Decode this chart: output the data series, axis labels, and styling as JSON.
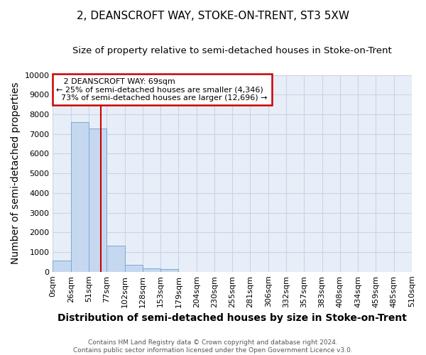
{
  "title": "2, DEANSCROFT WAY, STOKE-ON-TRENT, ST3 5XW",
  "subtitle": "Size of property relative to semi-detached houses in Stoke-on-Trent",
  "xlabel": "Distribution of semi-detached houses by size in Stoke-on-Trent",
  "ylabel": "Number of semi-detached properties",
  "footnote": "Contains HM Land Registry data © Crown copyright and database right 2024.\nContains public sector information licensed under the Open Government Licence v3.0.",
  "bin_labels": [
    "0sqm",
    "26sqm",
    "51sqm",
    "77sqm",
    "102sqm",
    "128sqm",
    "153sqm",
    "179sqm",
    "204sqm",
    "230sqm",
    "255sqm",
    "281sqm",
    "306sqm",
    "332sqm",
    "357sqm",
    "383sqm",
    "408sqm",
    "434sqm",
    "459sqm",
    "485sqm",
    "510sqm"
  ],
  "bar_values": [
    560,
    7600,
    7280,
    1340,
    340,
    160,
    120,
    0,
    0,
    0,
    0,
    0,
    0,
    0,
    0,
    0,
    0,
    0,
    0,
    0
  ],
  "bar_color": "#c5d8f0",
  "bar_edge_color": "#7aaad0",
  "property_label": "2 DEANSCROFT WAY: 69sqm",
  "pct_smaller": 25,
  "count_smaller": 4346,
  "pct_larger": 73,
  "count_larger": 12696,
  "vline_color": "#cc0000",
  "annotation_box_color": "#ffffff",
  "annotation_box_edge": "#cc0000",
  "ylim": [
    0,
    10000
  ],
  "yticks": [
    0,
    1000,
    2000,
    3000,
    4000,
    5000,
    6000,
    7000,
    8000,
    9000,
    10000
  ],
  "grid_color": "#c8d4e8",
  "bg_color": "#ffffff",
  "plot_bg_color": "#e8eef8",
  "title_fontsize": 11,
  "subtitle_fontsize": 9.5,
  "axis_label_fontsize": 10,
  "tick_fontsize": 8,
  "footnote_fontsize": 6.5
}
